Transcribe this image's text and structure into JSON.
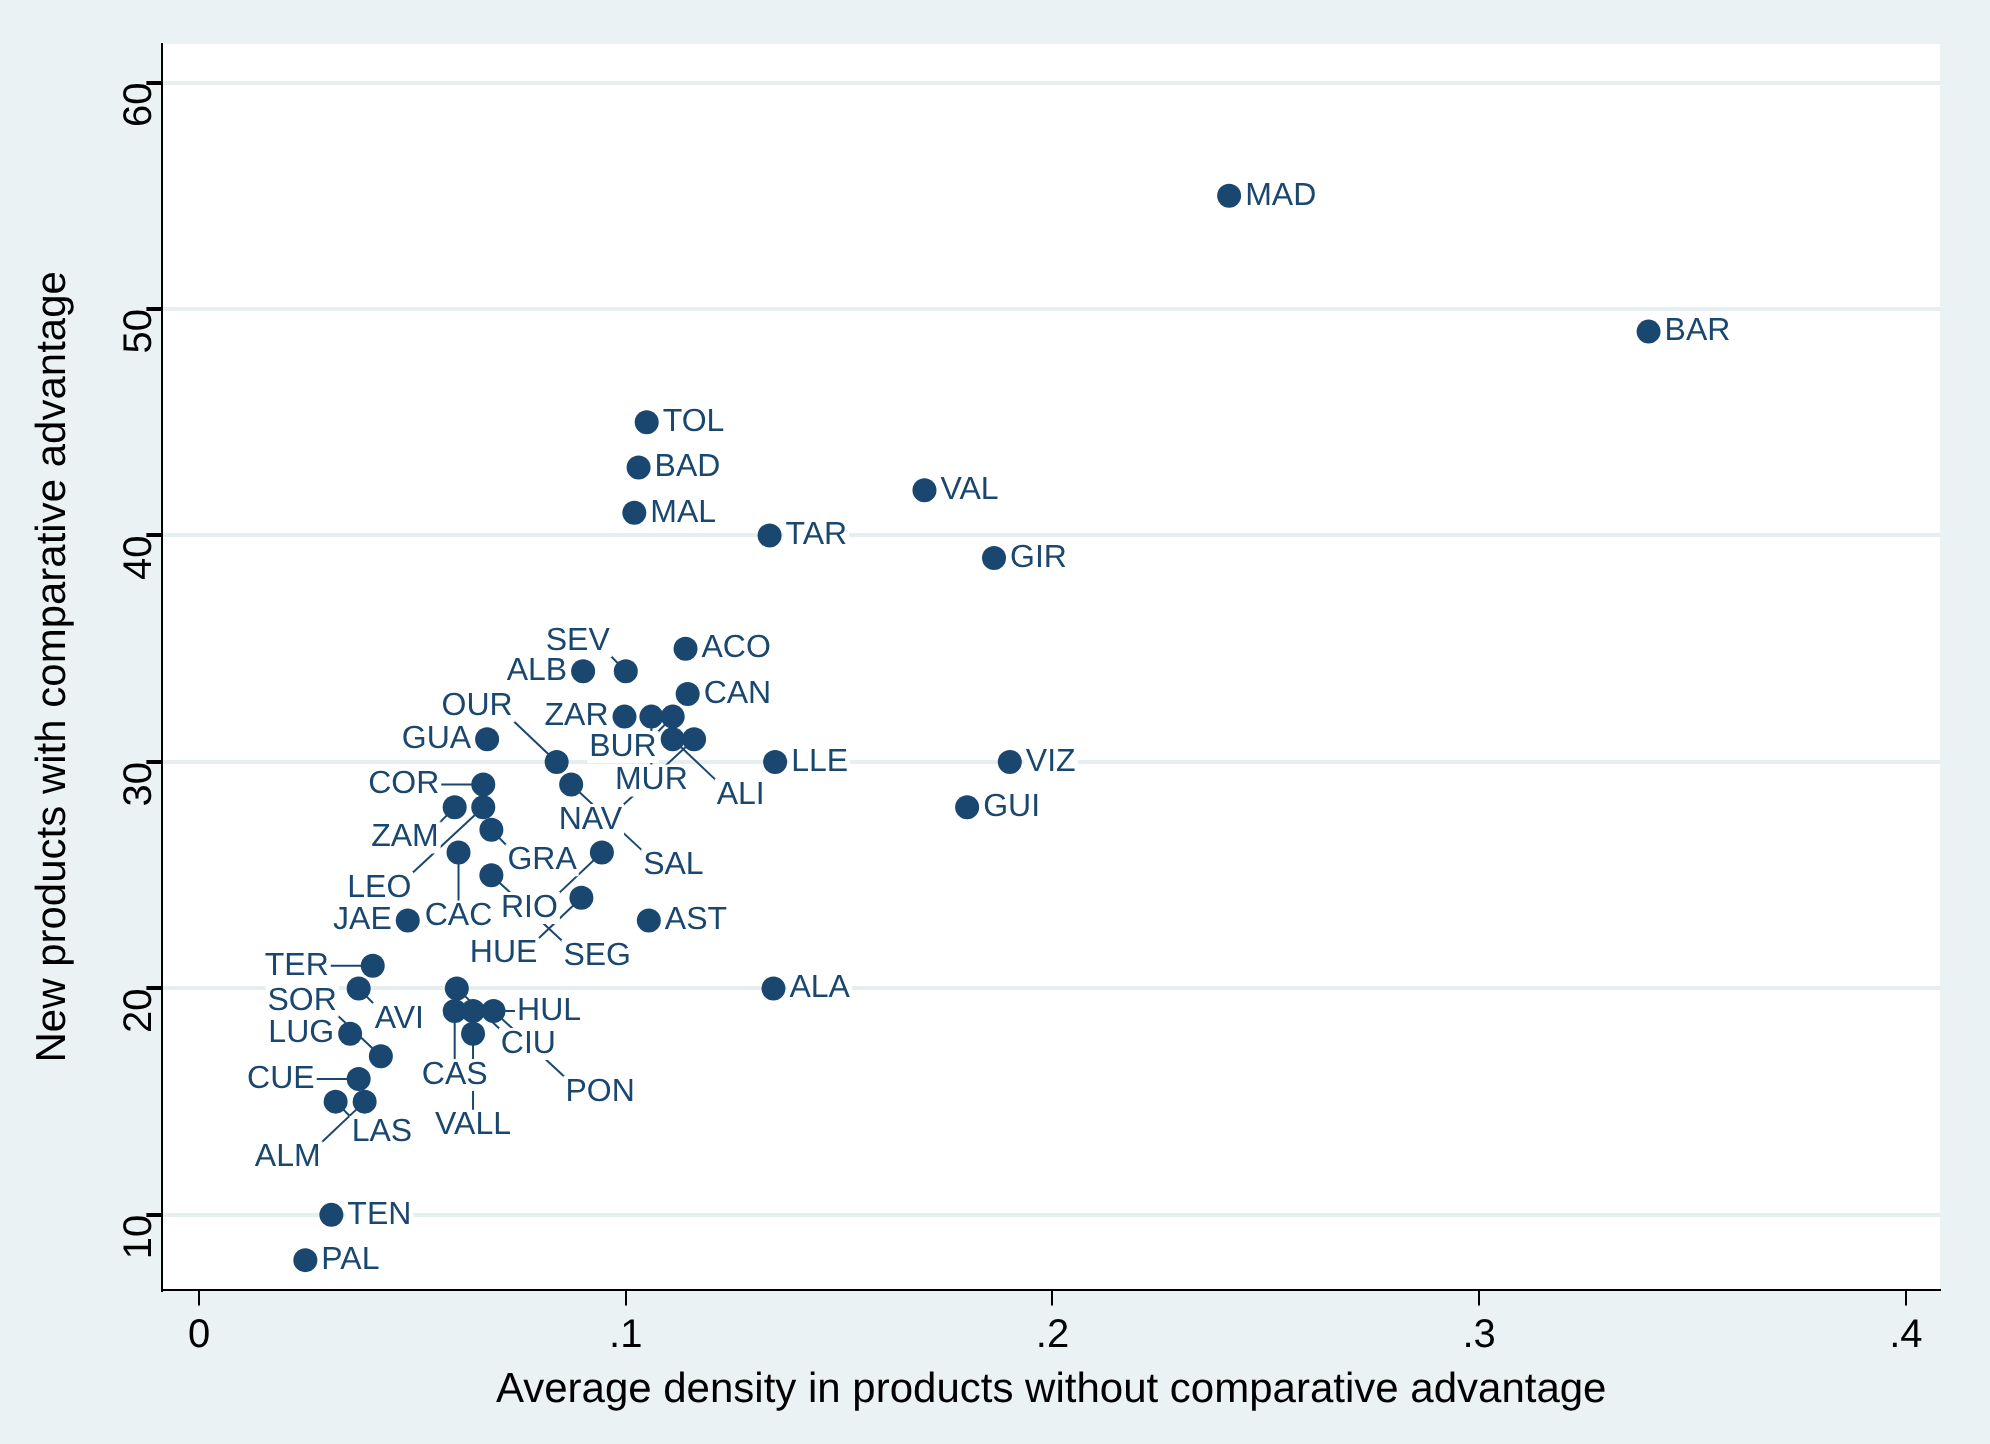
{
  "chart_data": {
    "type": "scatter",
    "xlabel": "Average density in products without comparative advantage",
    "ylabel": "New products with comparative advantage",
    "x": [
      0.2414,
      0.3397,
      0.1049,
      0.103,
      0.102,
      0.1337,
      0.17,
      0.1863,
      0.114,
      0.09,
      0.1,
      0.1145,
      0.0997,
      0.106,
      0.111,
      0.111,
      0.116,
      0.135,
      0.19,
      0.18,
      0.1346,
      0.1054,
      0.0675,
      0.0838,
      0.0872,
      0.0666,
      0.0599,
      0.0666,
      0.0685,
      0.0608,
      0.0944,
      0.0685,
      0.0896,
      0.0489,
      0.0407,
      0.0374,
      0.0604,
      0.0599,
      0.0642,
      0.069,
      0.0642,
      0.0354,
      0.0426,
      0.0374,
      0.032,
      0.0388,
      0.031,
      0.0249
    ],
    "values": [
      55,
      49,
      45,
      43,
      41,
      40,
      42,
      39,
      35,
      34,
      34,
      33,
      32,
      32,
      32,
      31,
      31,
      30,
      30,
      28,
      20,
      23,
      31,
      30,
      29,
      29,
      28,
      28,
      27,
      26,
      26,
      25,
      24,
      23,
      21,
      20,
      20,
      19,
      19,
      19,
      18,
      18,
      17,
      16,
      15,
      15,
      10,
      8
    ],
    "color": "#1a476f",
    "marker": "circle",
    "xlim": [
      -0.0086,
      0.408
    ],
    "ylim": [
      6.7,
      61.7
    ],
    "xticks": [
      {
        "value": 0,
        "label": "0"
      },
      {
        "value": 0.1,
        "label": ".1"
      },
      {
        "value": 0.2,
        "label": ".2"
      },
      {
        "value": 0.3,
        "label": ".3"
      },
      {
        "value": 0.4,
        "label": ".4"
      }
    ],
    "yticks": [
      10,
      20,
      30,
      40,
      50,
      60
    ],
    "grid": "y",
    "annotations": [
      {
        "text": "MAD",
        "x": 0.2414,
        "y": 55
      },
      {
        "text": "BAR",
        "x": 0.3397,
        "y": 49
      },
      {
        "text": "TOL",
        "x": 0.1049,
        "y": 45
      },
      {
        "text": "BAD",
        "x": 0.103,
        "y": 43
      },
      {
        "text": "MAL",
        "x": 0.102,
        "y": 41
      },
      {
        "text": "TAR",
        "x": 0.1337,
        "y": 40
      },
      {
        "text": "VAL",
        "x": 0.17,
        "y": 42
      },
      {
        "text": "GIR",
        "x": 0.1863,
        "y": 39
      },
      {
        "text": "ACO",
        "x": 0.114,
        "y": 35
      },
      {
        "text": "ALB",
        "x": 0.09,
        "y": 34
      },
      {
        "text": "SEV",
        "x": 0.1,
        "y": 34
      },
      {
        "text": "CAN",
        "x": 0.1145,
        "y": 33
      },
      {
        "text": "ZAR",
        "x": 0.0997,
        "y": 32
      },
      {
        "text": "MUR",
        "x": 0.106,
        "y": 32
      },
      {
        "text": "BUR",
        "x": 0.111,
        "y": 32
      },
      {
        "text": "ALI",
        "x": 0.111,
        "y": 31
      },
      {
        "text": "NAV",
        "x": 0.116,
        "y": 31
      },
      {
        "text": "LLE",
        "x": 0.135,
        "y": 30
      },
      {
        "text": "VIZ",
        "x": 0.19,
        "y": 30
      },
      {
        "text": "GUI",
        "x": 0.18,
        "y": 28
      },
      {
        "text": "ALA",
        "x": 0.1346,
        "y": 20
      },
      {
        "text": "AST",
        "x": 0.1054,
        "y": 23
      },
      {
        "text": "GUA",
        "x": 0.0675,
        "y": 31
      },
      {
        "text": "OUR",
        "x": 0.0838,
        "y": 30
      },
      {
        "text": "SAL",
        "x": 0.0872,
        "y": 29
      },
      {
        "text": "COR",
        "x": 0.0666,
        "y": 29
      },
      {
        "text": "ZAM",
        "x": 0.0599,
        "y": 28
      },
      {
        "text": "LEO",
        "x": 0.0666,
        "y": 28
      },
      {
        "text": "GRA",
        "x": 0.0685,
        "y": 27
      },
      {
        "text": "CAC",
        "x": 0.0608,
        "y": 26
      },
      {
        "text": "RIO",
        "x": 0.0944,
        "y": 26
      },
      {
        "text": "SEG",
        "x": 0.0685,
        "y": 25
      },
      {
        "text": "HUE",
        "x": 0.0896,
        "y": 24
      },
      {
        "text": "JAE",
        "x": 0.0489,
        "y": 23
      },
      {
        "text": "TER",
        "x": 0.0407,
        "y": 21
      },
      {
        "text": "AVI",
        "x": 0.0374,
        "y": 20
      },
      {
        "text": "CIU",
        "x": 0.0604,
        "y": 20
      },
      {
        "text": "CAS",
        "x": 0.0599,
        "y": 19
      },
      {
        "text": "HUL",
        "x": 0.0642,
        "y": 19
      },
      {
        "text": "PON",
        "x": 0.069,
        "y": 19
      },
      {
        "text": "VALL",
        "x": 0.0642,
        "y": 18
      },
      {
        "text": "LUG",
        "x": 0.0354,
        "y": 18
      },
      {
        "text": "SOR",
        "x": 0.0426,
        "y": 17
      },
      {
        "text": "CUE",
        "x": 0.0374,
        "y": 16
      },
      {
        "text": "LAS",
        "x": 0.032,
        "y": 15
      },
      {
        "text": "ALM",
        "x": 0.0388,
        "y": 15
      },
      {
        "text": "TEN",
        "x": 0.031,
        "y": 10
      },
      {
        "text": "PAL",
        "x": 0.0249,
        "y": 8
      }
    ]
  }
}
